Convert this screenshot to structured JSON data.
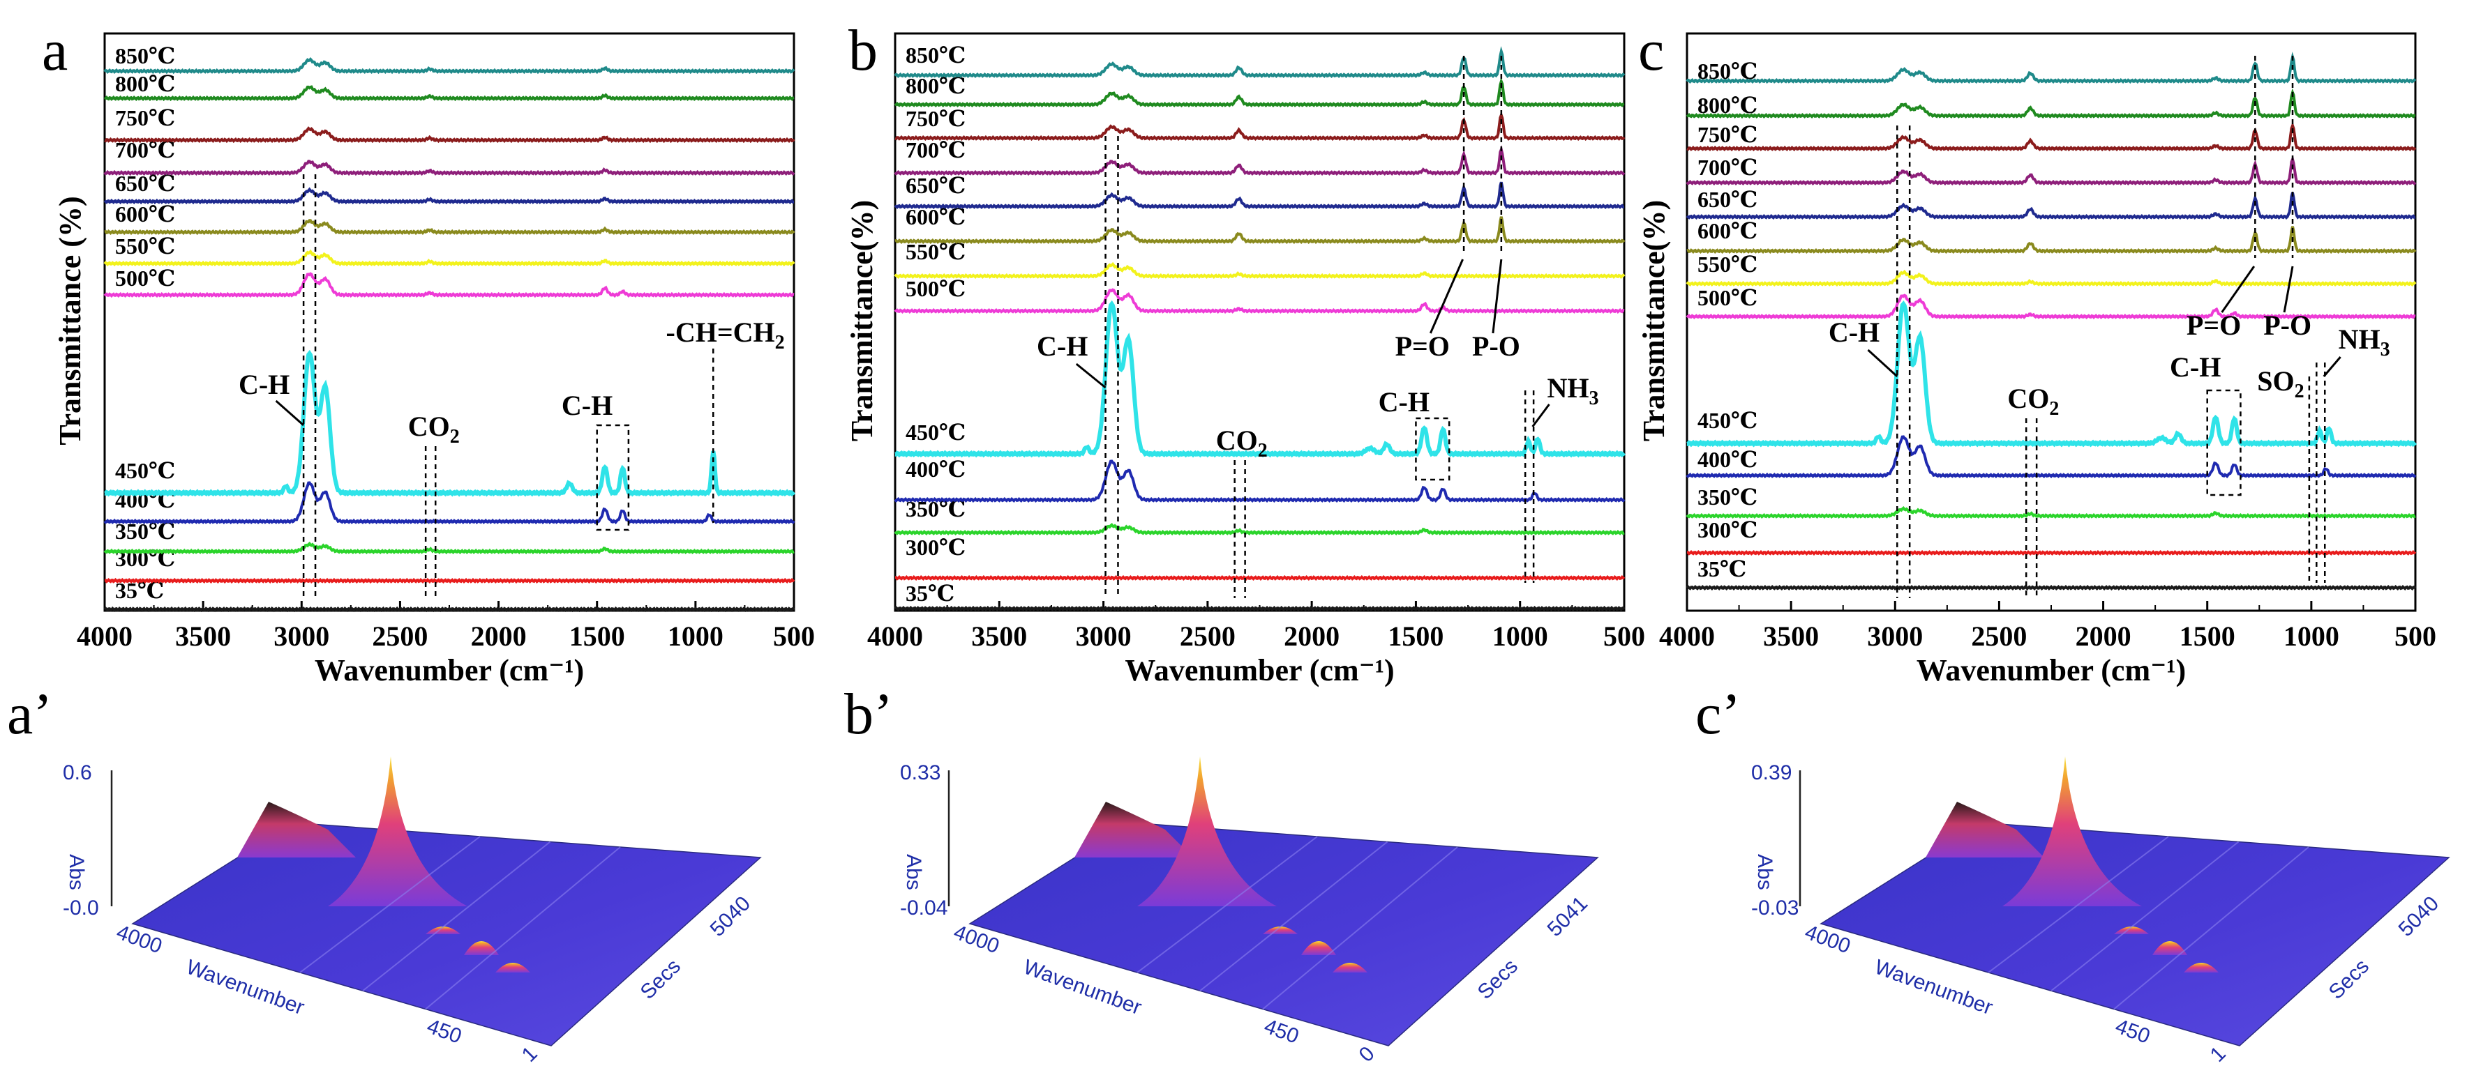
{
  "panel_labels": [
    "a",
    "b",
    "c"
  ],
  "panel_labels_3d": [
    "a’",
    "b’",
    "c’"
  ],
  "colors": {
    "35℃": "#1a1a1a",
    "300℃": "#e81c1c",
    "350℃": "#2bd42b",
    "400℃": "#1f2ab0",
    "450℃": "#2fe3e8",
    "500℃": "#ee3bd6",
    "550℃": "#f2f21c",
    "600℃": "#8a8a1e",
    "650℃": "#1f2a8f",
    "700℃": "#8e1f7a",
    "750℃": "#8b1c1c",
    "800℃": "#1f8a1f",
    "850℃": "#1f8a8a"
  },
  "chart_data": [
    {
      "type": "line",
      "panel": "a",
      "xlabel": "Wavenumber (cm-1)",
      "ylabel": "Transmittance (%)",
      "xlim": [
        4000,
        500
      ],
      "x_ticks": [
        4000,
        3500,
        3000,
        2500,
        2000,
        1500,
        1000,
        500
      ],
      "series_labels": [
        "35℃",
        "300℃",
        "350℃",
        "400℃",
        "450℃",
        "500℃",
        "550℃",
        "600℃",
        "650℃",
        "700℃",
        "750℃",
        "800℃",
        "850℃"
      ],
      "annotations": [
        "C-H",
        "CO2",
        "C-H",
        "-CH=CH2"
      ],
      "peaks_cm-1": {
        "C-H": 2960,
        "CO2": 2350,
        "C-H (bending)": 1450,
        "-CH=CH2": 910
      }
    },
    {
      "type": "line",
      "panel": "b",
      "xlabel": "Wavenumber (cm-1)",
      "ylabel": "Transmittance(%)",
      "xlim": [
        4000,
        500
      ],
      "x_ticks": [
        4000,
        3500,
        3000,
        2500,
        2000,
        1500,
        1000,
        500
      ],
      "series_labels": [
        "35℃",
        "300℃",
        "350℃",
        "400℃",
        "450℃",
        "500℃",
        "550℃",
        "600℃",
        "650℃",
        "700℃",
        "750℃",
        "800℃",
        "850℃"
      ],
      "annotations": [
        "C-H",
        "CO2",
        "C-H",
        "P=O",
        "P-O",
        "NH3"
      ],
      "peaks_cm-1": {
        "C-H": 2960,
        "CO2": 2350,
        "C-H (bending)": 1420,
        "P=O": 1270,
        "P-O": 1090,
        "NH3": 930
      }
    },
    {
      "type": "line",
      "panel": "c",
      "xlabel": "Wavenumber (cm-1)",
      "ylabel": "Transmittance(%)",
      "xlim": [
        4000,
        500
      ],
      "x_ticks": [
        4000,
        3500,
        3000,
        2500,
        2000,
        1500,
        1000,
        500
      ],
      "series_labels": [
        "35℃",
        "300℃",
        "350℃",
        "400℃",
        "450℃",
        "500℃",
        "550℃",
        "600℃",
        "650℃",
        "700℃",
        "750℃",
        "800℃",
        "850℃"
      ],
      "annotations": [
        "C-H",
        "CO2",
        "C-H",
        "P=O",
        "P-O",
        "SO2",
        "NH3"
      ],
      "peaks_cm-1": {
        "C-H": 2960,
        "CO2": 2350,
        "C-H (bending)": 1420,
        "P=O": 1270,
        "P-O": 1090,
        "SO2": 1000,
        "NH3": 930
      }
    },
    {
      "type": "surface3d",
      "panel": "a’",
      "z_label": "Abs",
      "z_ticks": [
        "0.6",
        "-0.0"
      ],
      "x_label": "Wavenumber",
      "x_ticks": [
        "4000",
        "450"
      ],
      "y_label": "Secs",
      "y_ticks": [
        "1",
        "5040"
      ]
    },
    {
      "type": "surface3d",
      "panel": "b’",
      "z_label": "Abs",
      "z_ticks": [
        "0.33",
        "-0.04"
      ],
      "x_label": "Wavenumber",
      "x_ticks": [
        "4000",
        "450"
      ],
      "y_label": "Secs",
      "y_ticks": [
        "0",
        "5041"
      ]
    },
    {
      "type": "surface3d",
      "panel": "c’",
      "z_label": "Abs",
      "z_ticks": [
        "0.39",
        "-0.03"
      ],
      "x_label": "Wavenumber",
      "x_ticks": [
        "4000",
        "450"
      ],
      "y_label": "Secs",
      "y_ticks": [
        "1",
        "5040"
      ]
    }
  ]
}
